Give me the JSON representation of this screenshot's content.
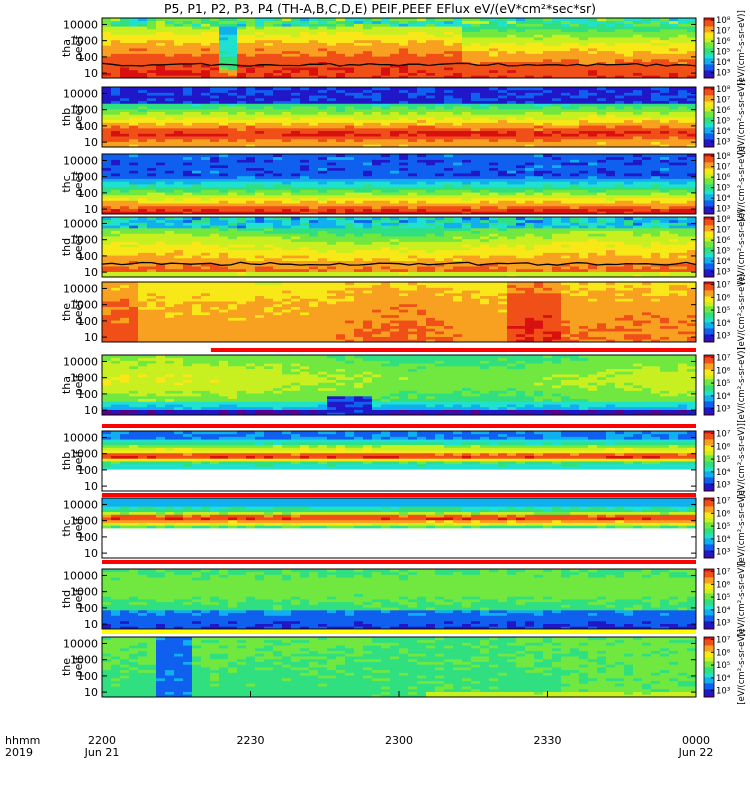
{
  "title": "P5, P1, P2, P3, P4 (TH-A,B,C,D,E) PEIF,PEEF EFlux eV/(eV*cm²*sec*sr)",
  "bottom_left": {
    "label_line1": "hhmm",
    "label_line2": "2019"
  },
  "colors": {
    "colormap": [
      "#5a0090",
      "#2018c8",
      "#1060f0",
      "#10b0f0",
      "#20e0d0",
      "#30e080",
      "#70e840",
      "#c8f020",
      "#f8e818",
      "#f8a020",
      "#f05018",
      "#d81010"
    ],
    "trace": "#000000",
    "bar_red": "#ff0000",
    "bar_yellow": "#ffff00",
    "background": "#ffffff"
  },
  "chart_data": {
    "type": "heatmap",
    "title": "P5, P1, P2, P3, P4 (TH-A,B,C,D,E) PEIF,PEEF EFlux eV/(eV*cm²*sec*sr)",
    "x_tick_labels": [
      {
        "top": "2200",
        "bottom": "Jun 21"
      },
      {
        "top": "2230",
        "bottom": ""
      },
      {
        "top": "2300",
        "bottom": ""
      },
      {
        "top": "2330",
        "bottom": ""
      },
      {
        "top": "0000",
        "bottom": "Jun 22"
      }
    ],
    "xlim": [
      "2019-06-21 22:00",
      "2019-06-22 00:00"
    ],
    "y_scale": "log",
    "y_tick_labels": [
      "10",
      "100",
      "1000",
      "10000"
    ],
    "colorbar_label": "[eV/(cm²-s-sr-eV)]",
    "panels": [
      {
        "ylabel": [
          "tha",
          "peef"
        ],
        "ylim": [
          5,
          25000
        ],
        "cbar_ticks": [
          "10³",
          "10⁴",
          "10⁵",
          "10⁶",
          "10⁷",
          "10⁸"
        ],
        "cbar_range": [
          2.5,
          8.2
        ],
        "profile": "ea",
        "trace": true
      },
      {
        "ylabel": [
          "thb",
          "peef"
        ],
        "ylim": [
          5,
          25000
        ],
        "cbar_ticks": [
          "10³",
          "10⁴",
          "10⁵",
          "10⁶",
          "10⁷",
          "10⁸"
        ],
        "cbar_range": [
          2.5,
          8.2
        ],
        "profile": "eb"
      },
      {
        "ylabel": [
          "thc",
          "peef"
        ],
        "ylim": [
          5,
          25000
        ],
        "cbar_ticks": [
          "10³",
          "10⁴",
          "10⁵",
          "10⁶",
          "10⁷",
          "10⁸"
        ],
        "cbar_range": [
          2.5,
          8.2
        ],
        "profile": "ec"
      },
      {
        "ylabel": [
          "thd",
          "peef"
        ],
        "ylim": [
          5,
          25000
        ],
        "cbar_ticks": [
          "10³",
          "10⁴",
          "10⁵",
          "10⁶",
          "10⁷",
          "10⁸"
        ],
        "cbar_range": [
          2.5,
          8.2
        ],
        "profile": "ed",
        "trace": true
      },
      {
        "ylabel": [
          "the",
          "peef"
        ],
        "ylim": [
          5,
          25000
        ],
        "cbar_ticks": [
          "10³",
          "10⁴",
          "10⁵",
          "10⁶",
          "10⁷"
        ],
        "cbar_range": [
          2.5,
          7.2
        ],
        "profile": "ee"
      },
      {
        "ylabel": [
          "tha",
          "peif"
        ],
        "ylim": [
          5,
          25000
        ],
        "cbar_ticks": [
          "10³",
          "10⁴",
          "10⁵",
          "10⁶",
          "10⁷"
        ],
        "cbar_range": [
          2.5,
          7.2
        ],
        "profile": "ia",
        "top_bar": "red",
        "top_bar_start": "2019-06-21 22:22"
      },
      {
        "ylabel": [
          "thb",
          "peif"
        ],
        "ylim": [
          5,
          25000
        ],
        "cbar_ticks": [
          "10³",
          "10⁴",
          "10⁵",
          "10⁶",
          "10⁷"
        ],
        "cbar_range": [
          2.5,
          7.2
        ],
        "profile": "ib",
        "top_bar": "red",
        "bottom_bar": "red"
      },
      {
        "ylabel": [
          "thc",
          "peif"
        ],
        "ylim": [
          5,
          25000
        ],
        "cbar_ticks": [
          "10³",
          "10⁴",
          "10⁵",
          "10⁶",
          "10⁷"
        ],
        "cbar_range": [
          2.5,
          7.2
        ],
        "profile": "ic",
        "bottom_bar": "red"
      },
      {
        "ylabel": [
          "thd",
          "peif"
        ],
        "ylim": [
          5,
          25000
        ],
        "cbar_ticks": [
          "10³",
          "10⁴",
          "10⁵",
          "10⁶",
          "10⁷"
        ],
        "cbar_range": [
          2.5,
          7.2
        ],
        "profile": "id"
      },
      {
        "ylabel": [
          "the",
          "peif"
        ],
        "ylim": [
          5,
          25000
        ],
        "cbar_ticks": [
          "10³",
          "10⁴",
          "10⁵",
          "10⁶",
          "10⁷"
        ],
        "cbar_range": [
          2.5,
          7.2
        ],
        "profile": "ie",
        "top_bar": "yellow"
      }
    ]
  }
}
